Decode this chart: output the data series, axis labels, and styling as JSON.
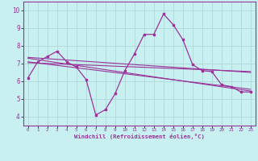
{
  "xlabel": "Windchill (Refroidissement éolien,°C)",
  "bg_color": "#c8f0f0",
  "line_color": "#993399",
  "grid_color": "#b0d8d8",
  "xlim": [
    -0.5,
    23.5
  ],
  "ylim": [
    3.5,
    10.5
  ],
  "yticks": [
    4,
    5,
    6,
    7,
    8,
    9,
    10
  ],
  "xticks": [
    0,
    1,
    2,
    3,
    4,
    5,
    6,
    7,
    8,
    9,
    10,
    11,
    12,
    13,
    14,
    15,
    16,
    17,
    18,
    19,
    20,
    21,
    22,
    23
  ],
  "line1_x": [
    0,
    1,
    2,
    3,
    4,
    5,
    6,
    7,
    8,
    9,
    10,
    11,
    12,
    13,
    14,
    15,
    16,
    17,
    18,
    19,
    20,
    21,
    22,
    23
  ],
  "line1_y": [
    6.2,
    7.1,
    7.4,
    7.7,
    7.1,
    6.8,
    6.1,
    4.1,
    4.4,
    5.3,
    6.6,
    7.55,
    8.65,
    8.65,
    9.8,
    9.2,
    8.35,
    6.95,
    6.6,
    6.55,
    5.8,
    5.7,
    5.4,
    5.4
  ],
  "line2_x": [
    0,
    23
  ],
  "line2_y": [
    7.3,
    5.45
  ],
  "line3_x": [
    0,
    23
  ],
  "line3_y": [
    7.1,
    5.55
  ],
  "line4_x": [
    0,
    23
  ],
  "line4_y": [
    7.35,
    6.5
  ],
  "line5_x": [
    0,
    23
  ],
  "line5_y": [
    7.05,
    6.55
  ]
}
